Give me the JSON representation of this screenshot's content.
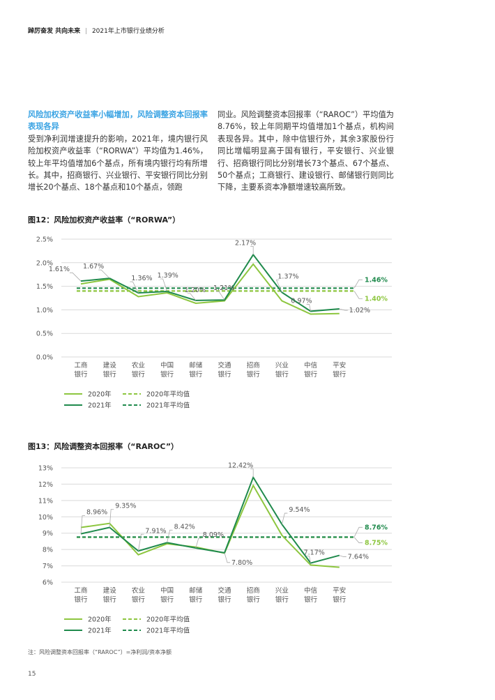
{
  "header": {
    "title": "踔厉奋发 共向未来",
    "separator": "|",
    "subtitle": "2021年上市银行业绩分析"
  },
  "text": {
    "section_title": "风险加权资产收益率小幅增加，风险调整资本回报率表现各异",
    "para_left": "受到净利润增速提升的影响，2021年，境内银行风险加权资产收益率（“RORWA”）平均值为1.46%，较上年平均值增加6个基点，所有境内银行均有所增长。其中，招商银行、兴业银行、平安银行同比分别增长20个基点、18个基点和10个基点，领跑",
    "para_right": "同业。风险调整资本回报率（“RAROC”）平均值为8.76%，较上年同期平均值增加1个基点，机构间表现各异。其中，除中信银行外，其余3家股份行同比增幅明显高于国有银行，平安银行、兴业银行、招商银行同比分别增长73个基点、67个基点、50个基点；工商银行、建设银行、邮储银行则同比下降，主要系资本净额增速较高所致。"
  },
  "figures": {
    "fig12_title": "图12：风险加权资产收益率（“RORWA”）",
    "fig13_title": "图13：风险调整资本回报率（“RAROC”）"
  },
  "footnote": "注：风险调整资本回报率（“RAROC”）=净利润/资本净额",
  "page_number": "15",
  "colors": {
    "series_2020": "#8dc63f",
    "series_2021": "#1f8a4c",
    "avg_2020_label": "#8dc63f",
    "avg_2021_label": "#1f8a4c",
    "grid": "#d9d9d9",
    "leader": "#aaaaaa"
  },
  "chart_data": [
    {
      "type": "line",
      "id": "fig12",
      "categories": [
        [
          "工商",
          "银行"
        ],
        [
          "建设",
          "银行"
        ],
        [
          "农业",
          "银行"
        ],
        [
          "中国",
          "银行"
        ],
        [
          "邮储",
          "银行"
        ],
        [
          "交通",
          "银行"
        ],
        [
          "招商",
          "银行"
        ],
        [
          "兴业",
          "银行"
        ],
        [
          "中信",
          "银行"
        ],
        [
          "平安",
          "银行"
        ]
      ],
      "ylim": [
        0,
        2.5
      ],
      "yticks": [
        0,
        0.5,
        1.0,
        1.5,
        2.0,
        2.5
      ],
      "ytick_labels": [
        "0.0%",
        "0.5%",
        "1.0%",
        "1.5%",
        "2.0%",
        "2.5%"
      ],
      "series": [
        {
          "name": "2020年",
          "values": [
            1.55,
            1.65,
            1.28,
            1.36,
            1.14,
            1.19,
            1.97,
            1.19,
            0.91,
            0.92
          ]
        },
        {
          "name": "2021年",
          "values": [
            1.61,
            1.67,
            1.36,
            1.39,
            1.2,
            1.21,
            2.17,
            1.37,
            0.97,
            1.02
          ]
        }
      ],
      "averages": [
        {
          "name": "2020年平均值",
          "value": 1.4,
          "label": "1.40%"
        },
        {
          "name": "2021年平均值",
          "value": 1.46,
          "label": "1.46%"
        }
      ],
      "data_labels": [
        "1.61%",
        "1.67%",
        "1.36%",
        "1.39%",
        "1.20%",
        "1.21%",
        "2.17%",
        "1.37%",
        "0.97%",
        "1.02%"
      ],
      "legend": [
        "2020年",
        "2021年",
        "2020年平均值",
        "2021年平均值"
      ],
      "legend_position": "bottom-left",
      "grid": true
    },
    {
      "type": "line",
      "id": "fig13",
      "categories": [
        [
          "工商",
          "银行"
        ],
        [
          "建设",
          "银行"
        ],
        [
          "农业",
          "银行"
        ],
        [
          "中国",
          "银行"
        ],
        [
          "邮储",
          "银行"
        ],
        [
          "交通",
          "银行"
        ],
        [
          "招商",
          "银行"
        ],
        [
          "兴业",
          "银行"
        ],
        [
          "中信",
          "银行"
        ],
        [
          "平安",
          "银行"
        ]
      ],
      "ylim": [
        6,
        13
      ],
      "yticks": [
        6,
        7,
        8,
        9,
        10,
        11,
        12,
        13
      ],
      "ytick_labels": [
        "6%",
        "7%",
        "8%",
        "9%",
        "10%",
        "11%",
        "12%",
        "13%"
      ],
      "series": [
        {
          "name": "2020年",
          "values": [
            9.35,
            9.6,
            7.68,
            8.35,
            8.15,
            7.78,
            11.92,
            8.87,
            7.05,
            6.91
          ]
        },
        {
          "name": "2021年",
          "values": [
            8.96,
            9.35,
            7.91,
            8.42,
            8.09,
            7.8,
            12.42,
            9.54,
            7.17,
            7.64
          ]
        }
      ],
      "averages": [
        {
          "name": "2020年平均值",
          "value": 8.75,
          "label": "8.75%"
        },
        {
          "name": "2021年平均值",
          "value": 8.76,
          "label": "8.76%"
        }
      ],
      "data_labels": [
        "8.96%",
        "9.35%",
        "7.91%",
        "8.42%",
        "8.09%",
        "7.80%",
        "12.42%",
        "9.54%",
        "7.17%",
        "7.64%"
      ],
      "legend": [
        "2020年",
        "2021年",
        "2020年平均值",
        "2021年平均值"
      ],
      "legend_position": "bottom-left",
      "grid": true
    }
  ]
}
